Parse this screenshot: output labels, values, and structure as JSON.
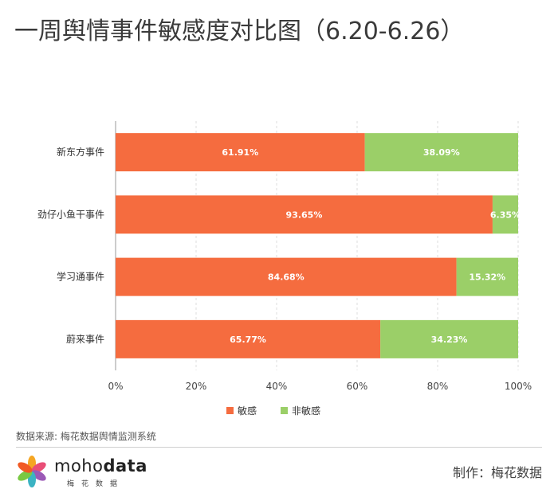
{
  "chart_data": {
    "type": "bar",
    "orientation": "horizontal",
    "stacked": true,
    "title": "一周舆情事件敏感度对比图（6.20-6.26）",
    "categories": [
      "新东方事件",
      "劲仔小鱼干事件",
      "学习通事件",
      "蔚来事件"
    ],
    "series": [
      {
        "name": "敏感",
        "color": "#f56c3f",
        "values": [
          61.91,
          93.65,
          84.68,
          65.77
        ],
        "labels": [
          "61.91%",
          "93.65%",
          "84.68%",
          "65.77%"
        ]
      },
      {
        "name": "非敏感",
        "color": "#9bcf68",
        "values": [
          38.09,
          6.35,
          15.32,
          34.23
        ],
        "labels": [
          "38.09%",
          "6.35%",
          "15.32%",
          "34.23%"
        ]
      }
    ],
    "xlim": [
      0,
      100
    ],
    "xticks": [
      "0%",
      "20%",
      "40%",
      "60%",
      "80%",
      "100%"
    ],
    "grid": true,
    "legend_position": "bottom"
  },
  "footer": {
    "source": "数据来源: 梅花数据舆情监测系统",
    "brand_regular": "moho",
    "brand_bold": "data",
    "brand_sub": "梅花数据",
    "credit": "制作：梅花数据"
  },
  "logo_icon": "pinwheel-logo-icon"
}
